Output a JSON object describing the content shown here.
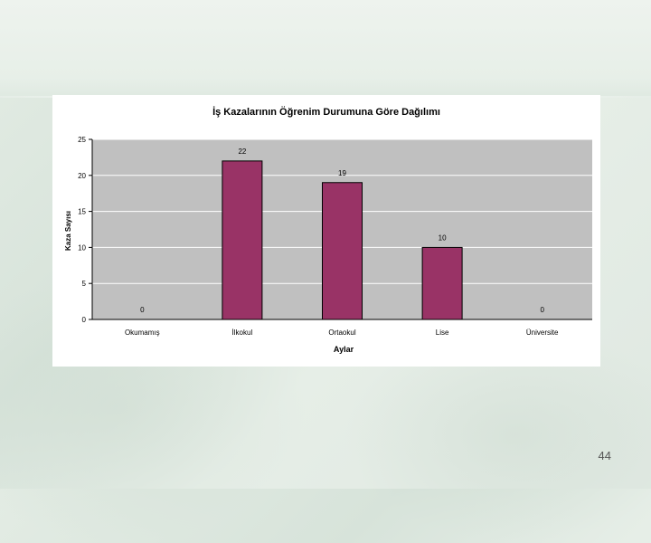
{
  "slide": {
    "page_number": "44"
  },
  "colors": {
    "bar": "#993366",
    "plot_bg": "#c0c0c0",
    "grid": "#ffffff"
  },
  "chart_data": {
    "type": "bar",
    "title": "İş Kazalarının Öğrenim Durumuna Göre Dağılımı",
    "xlabel": "Aylar",
    "ylabel": "Kaza Sayısı",
    "categories": [
      "Okumamış",
      "İlkokul",
      "Ortaokul",
      "Lise",
      "Üniversite"
    ],
    "values": [
      0,
      22,
      19,
      10,
      0
    ],
    "data_labels": [
      "0",
      "22",
      "19",
      "10",
      "0"
    ],
    "ylim": [
      0,
      25
    ],
    "yticks": [
      "0",
      "5",
      "10",
      "15",
      "20",
      "25"
    ],
    "grid": true,
    "legend": "none"
  }
}
